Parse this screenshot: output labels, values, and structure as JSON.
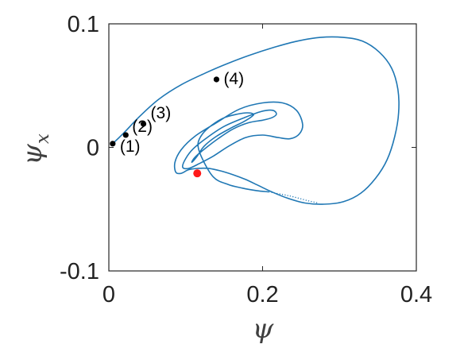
{
  "chart_data": {
    "type": "line",
    "title": "",
    "xlabel": "ψ",
    "ylabel": "ψ",
    "ylabel_subscript": "x",
    "xlim": [
      0,
      0.4
    ],
    "ylim": [
      -0.1,
      0.1
    ],
    "x_ticks": [
      0,
      0.2,
      0.4
    ],
    "x_tick_labels": [
      "0",
      "0.2",
      "0.4"
    ],
    "y_ticks": [
      -0.1,
      0,
      0.1
    ],
    "y_tick_labels": [
      "-0.1",
      "0",
      "0.1"
    ],
    "grid": false,
    "legend": "none",
    "series": [
      {
        "color": "#1f77b4",
        "style": "solid",
        "x": [
          0.005,
          0.02,
          0.04,
          0.065,
          0.095,
          0.125,
          0.155,
          0.185,
          0.215,
          0.245,
          0.275,
          0.305,
          0.33,
          0.352,
          0.368,
          0.376,
          0.377,
          0.372,
          0.362,
          0.347,
          0.328,
          0.305,
          0.28,
          0.255,
          0.232,
          0.212,
          0.195,
          0.178,
          0.161,
          0.145,
          0.13,
          0.116,
          0.104,
          0.094,
          0.087,
          0.086,
          0.094,
          0.112,
          0.14,
          0.17,
          0.2,
          0.226,
          0.244,
          0.252,
          0.248,
          0.236,
          0.22,
          0.2,
          0.178,
          0.156,
          0.136,
          0.118,
          0.104,
          0.096,
          0.1,
          0.11,
          0.128,
          0.15,
          0.176,
          0.198,
          0.213,
          0.218,
          0.212,
          0.2,
          0.182,
          0.162,
          0.142,
          0.125,
          0.112,
          0.108,
          0.115,
          0.124,
          0.14,
          0.16,
          0.176,
          0.186,
          0.188,
          0.18,
          0.168,
          0.15,
          0.134,
          0.122,
          0.116,
          0.12,
          0.136,
          0.155,
          0.174,
          0.192,
          0.208
        ],
        "y": [
          0.003,
          0.012,
          0.025,
          0.039,
          0.051,
          0.06,
          0.068,
          0.075,
          0.081,
          0.086,
          0.089,
          0.089,
          0.086,
          0.077,
          0.064,
          0.047,
          0.028,
          0.009,
          -0.01,
          -0.025,
          -0.037,
          -0.044,
          -0.046,
          -0.045,
          -0.041,
          -0.036,
          -0.031,
          -0.026,
          -0.022,
          -0.019,
          -0.017,
          -0.017,
          -0.018,
          -0.021,
          -0.02,
          -0.012,
          -0.002,
          0.009,
          0.02,
          0.031,
          0.036,
          0.036,
          0.03,
          0.019,
          0.011,
          0.007,
          0.008,
          0.01,
          0.008,
          0.001,
          -0.007,
          -0.013,
          -0.017,
          -0.016,
          -0.009,
          -0.001,
          0.008,
          0.017,
          0.024,
          0.029,
          0.03,
          0.027,
          0.024,
          0.022,
          0.02,
          0.015,
          0.007,
          -0.001,
          -0.008,
          -0.012,
          -0.007,
          0.001,
          0.009,
          0.016,
          0.021,
          0.025,
          0.027,
          0.028,
          0.027,
          0.024,
          0.018,
          0.011,
          0.003,
          -0.007,
          -0.024,
          -0.03,
          -0.033,
          -0.035,
          -0.036
        ]
      }
    ],
    "tail": {
      "color": "#1f77b4",
      "style": "dotted",
      "x": [
        0.208,
        0.225,
        0.24,
        0.258,
        0.272
      ],
      "y": [
        -0.036,
        -0.038,
        -0.04,
        -0.043,
        -0.045
      ]
    },
    "marked_points": [
      {
        "label": "(1)",
        "x": 0.005,
        "y": 0.003
      },
      {
        "label": "(2)",
        "x": 0.022,
        "y": 0.01
      },
      {
        "label": "(3)",
        "x": 0.045,
        "y": 0.019
      },
      {
        "label": "(4)",
        "x": 0.14,
        "y": 0.055
      }
    ],
    "highlight_point": {
      "x": 0.115,
      "y": -0.021,
      "color": "#ff1a1a"
    },
    "point_color": "#000000"
  }
}
